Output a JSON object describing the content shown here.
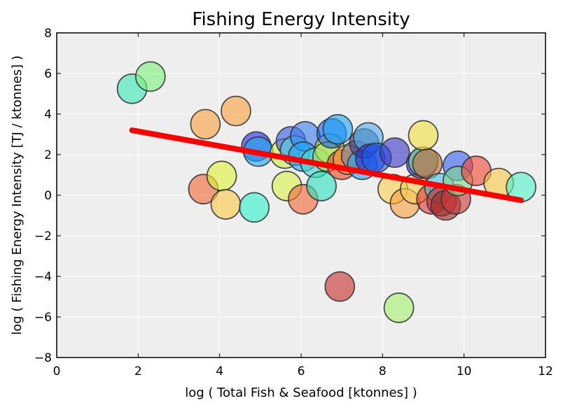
{
  "chart_data": {
    "type": "scatter",
    "title": "Fishing Energy Intensity",
    "xlabel": "log ( Total Fish & Seafood [ktonnes] )",
    "ylabel": "log ( Fishing Energy Intensity [TJ / ktonnes] )",
    "xlim": [
      0,
      12
    ],
    "ylim": [
      -8,
      8
    ],
    "x_ticks": [
      0,
      2,
      4,
      6,
      8,
      10,
      12
    ],
    "y_ticks": [
      -8,
      -6,
      -4,
      -2,
      0,
      2,
      4,
      6,
      8
    ],
    "x_tick_labels": [
      "0",
      "2",
      "4",
      "6",
      "8",
      "10",
      "12"
    ],
    "y_tick_labels": [
      "−8",
      "−6",
      "−4",
      "−2",
      "0",
      "2",
      "4",
      "6",
      "8"
    ],
    "grid": true,
    "background_color": "#eeeeee",
    "marker_edge_color": "#333333",
    "points": [
      {
        "x": 1.85,
        "y": 5.25,
        "color": "#3ce8b4"
      },
      {
        "x": 2.3,
        "y": 5.85,
        "color": "#7ef07e"
      },
      {
        "x": 3.65,
        "y": 3.5,
        "color": "#f8a040"
      },
      {
        "x": 4.4,
        "y": 4.15,
        "color": "#f8a040"
      },
      {
        "x": 3.6,
        "y": 0.3,
        "color": "#f06a3a"
      },
      {
        "x": 4.05,
        "y": 0.95,
        "color": "#e0f038"
      },
      {
        "x": 4.15,
        "y": -0.45,
        "color": "#f8c848"
      },
      {
        "x": 4.85,
        "y": -0.6,
        "color": "#30f0c8"
      },
      {
        "x": 4.9,
        "y": 2.4,
        "color": "#2a2ae8"
      },
      {
        "x": 4.95,
        "y": 2.15,
        "color": "#1ea8f0"
      },
      {
        "x": 5.6,
        "y": 2.05,
        "color": "#c8f050"
      },
      {
        "x": 5.75,
        "y": 2.65,
        "color": "#3a5ae8"
      },
      {
        "x": 5.85,
        "y": 2.2,
        "color": "#50d0e8"
      },
      {
        "x": 5.65,
        "y": 0.45,
        "color": "#d8f048"
      },
      {
        "x": 6.05,
        "y": -0.2,
        "color": "#f06a3a"
      },
      {
        "x": 6.1,
        "y": 2.9,
        "color": "#3a80f0"
      },
      {
        "x": 6.05,
        "y": 1.9,
        "color": "#1ea8f0"
      },
      {
        "x": 6.35,
        "y": 1.6,
        "color": "#40d8d0"
      },
      {
        "x": 6.5,
        "y": 0.45,
        "color": "#30e0c0"
      },
      {
        "x": 6.7,
        "y": 2.3,
        "color": "#d8f048"
      },
      {
        "x": 6.65,
        "y": 1.9,
        "color": "#a0e060"
      },
      {
        "x": 6.75,
        "y": 3.05,
        "color": "#1a60e8"
      },
      {
        "x": 6.9,
        "y": 3.25,
        "color": "#20a8f8"
      },
      {
        "x": 7.0,
        "y": 1.5,
        "color": "#f04820"
      },
      {
        "x": 7.15,
        "y": 1.75,
        "color": "#f8a040"
      },
      {
        "x": 6.95,
        "y": -4.5,
        "color": "#c83030"
      },
      {
        "x": 7.35,
        "y": 1.95,
        "color": "#8080a0"
      },
      {
        "x": 7.5,
        "y": 1.5,
        "color": "#1ea8f0"
      },
      {
        "x": 7.55,
        "y": 2.55,
        "color": "#3a3a7a"
      },
      {
        "x": 7.65,
        "y": 2.85,
        "color": "#50b0f0"
      },
      {
        "x": 7.7,
        "y": 1.8,
        "color": "#2a2ae8"
      },
      {
        "x": 7.85,
        "y": 1.85,
        "color": "#1a60e8"
      },
      {
        "x": 8.3,
        "y": 2.1,
        "color": "#3a3ac8"
      },
      {
        "x": 8.25,
        "y": 0.3,
        "color": "#f8d050"
      },
      {
        "x": 8.4,
        "y": -5.55,
        "color": "#a8f070"
      },
      {
        "x": 8.55,
        "y": -0.4,
        "color": "#f8a040"
      },
      {
        "x": 8.8,
        "y": 0.3,
        "color": "#f8d050"
      },
      {
        "x": 8.95,
        "y": 1.55,
        "color": "#2a2ae8"
      },
      {
        "x": 9.0,
        "y": 1.65,
        "color": "#80e080"
      },
      {
        "x": 9.0,
        "y": 2.95,
        "color": "#f0e040"
      },
      {
        "x": 9.1,
        "y": 1.55,
        "color": "#c07040"
      },
      {
        "x": 9.2,
        "y": -0.2,
        "color": "#e03838"
      },
      {
        "x": 9.4,
        "y": 0.35,
        "color": "#50c0e8"
      },
      {
        "x": 9.45,
        "y": -0.3,
        "color": "#c03030"
      },
      {
        "x": 9.55,
        "y": -0.5,
        "color": "#a02828"
      },
      {
        "x": 9.8,
        "y": -0.2,
        "color": "#c83838"
      },
      {
        "x": 9.85,
        "y": 1.45,
        "color": "#3a60f0"
      },
      {
        "x": 9.85,
        "y": 0.7,
        "color": "#80d890"
      },
      {
        "x": 10.3,
        "y": 1.2,
        "color": "#f04838"
      },
      {
        "x": 10.85,
        "y": 0.6,
        "color": "#f8c848"
      },
      {
        "x": 11.4,
        "y": 0.4,
        "color": "#50f0c8"
      }
    ],
    "regression_line": {
      "color": "#ff0000",
      "x": [
        1.85,
        11.4
      ],
      "y": [
        3.2,
        -0.25
      ]
    }
  }
}
